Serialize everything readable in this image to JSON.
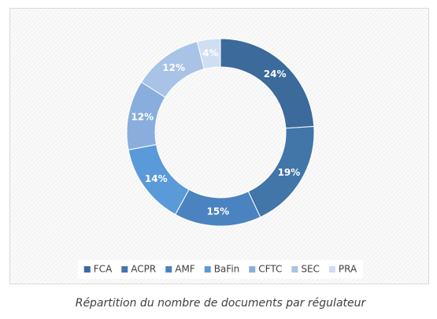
{
  "chart_data": {
    "type": "donut",
    "caption": "Répartition du nombre de documents par régulateur",
    "categories": [
      "FCA",
      "ACPR",
      "AMF",
      "BaFin",
      "CFTC",
      "SEC",
      "PRA"
    ],
    "values": [
      24,
      19,
      15,
      14,
      12,
      12,
      4
    ],
    "value_labels": [
      "24%",
      "19%",
      "15%",
      "14%",
      "12%",
      "12%",
      "4%"
    ],
    "colors": [
      "#3b6a9b",
      "#4275a8",
      "#4a83bf",
      "#5b9ad8",
      "#89aedd",
      "#a8c3e6",
      "#cfdef2"
    ],
    "legend": "bottom"
  }
}
